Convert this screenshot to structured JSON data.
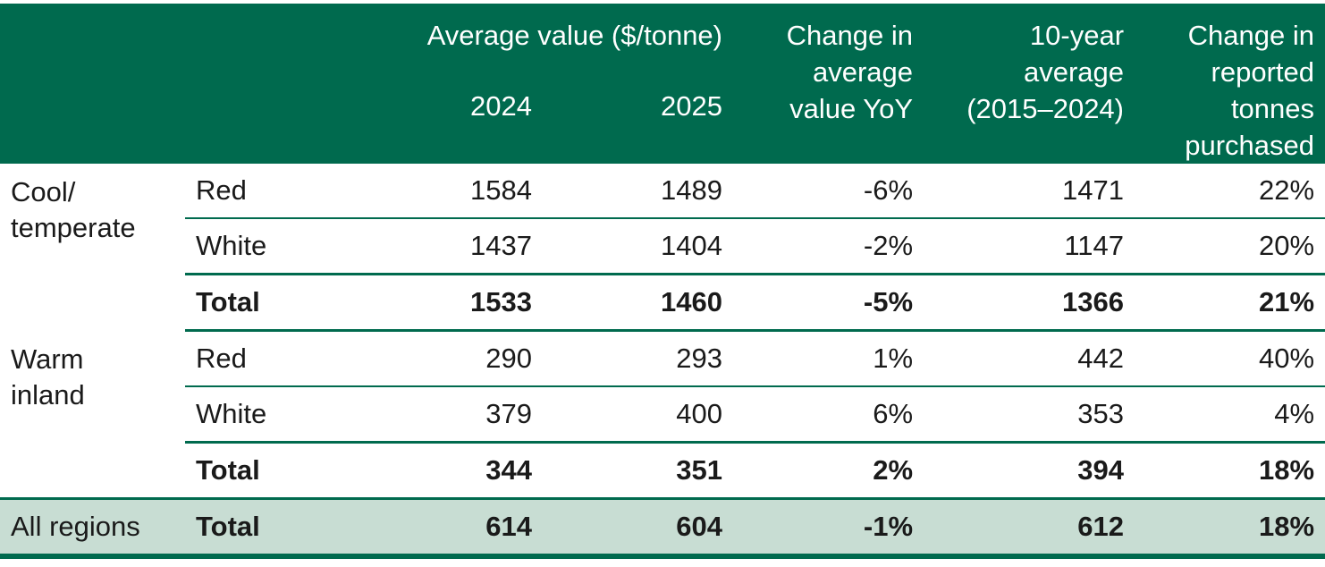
{
  "header": {
    "average_value": "Average value ($/tonne)",
    "year_2024": "2024",
    "year_2025": "2025",
    "change_avg": [
      "Change in",
      "average",
      "value YoY"
    ],
    "ten_year": [
      "10-year",
      "average",
      "(2015–2024)"
    ],
    "change_tonnes": [
      "Change in",
      "reported",
      "tonnes",
      "purchased"
    ]
  },
  "groups": [
    {
      "region": [
        "Cool/",
        "temperate"
      ],
      "rows": [
        {
          "type": "Red",
          "v2024": "1584",
          "v2025": "1489",
          "change": "-6%",
          "avg10": "1471",
          "tonnes": "22%"
        },
        {
          "type": "White",
          "v2024": "1437",
          "v2025": "1404",
          "change": "-2%",
          "avg10": "1147",
          "tonnes": "20%"
        },
        {
          "type": "Total",
          "v2024": "1533",
          "v2025": "1460",
          "change": "-5%",
          "avg10": "1366",
          "tonnes": "21%"
        }
      ]
    },
    {
      "region": [
        "Warm",
        "inland"
      ],
      "rows": [
        {
          "type": "Red",
          "v2024": "290",
          "v2025": "293",
          "change": "1%",
          "avg10": "442",
          "tonnes": "40%"
        },
        {
          "type": "White",
          "v2024": "379",
          "v2025": "400",
          "change": "6%",
          "avg10": "353",
          "tonnes": "4%"
        },
        {
          "type": "Total",
          "v2024": "344",
          "v2025": "351",
          "change": "2%",
          "avg10": "394",
          "tonnes": "18%"
        }
      ]
    }
  ],
  "all_regions": {
    "region": "All regions",
    "type": "Total",
    "v2024": "614",
    "v2025": "604",
    "change": "-1%",
    "avg10": "612",
    "tonnes": "18%"
  },
  "colors": {
    "header_bg": "#006a4e",
    "summary_bg": "#c8ddd3",
    "rule": "#006a4e"
  }
}
